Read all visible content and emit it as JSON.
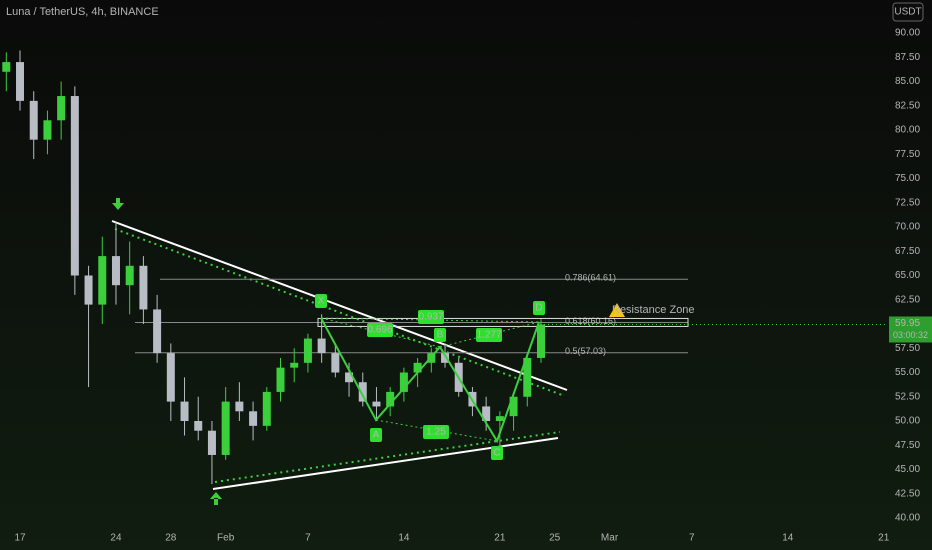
{
  "header": {
    "title": "Luna / TetherUS, 4h, BINANCE",
    "currency": "USDT"
  },
  "chart_data": {
    "type": "candlestick",
    "up_color": "#3ccf3c",
    "down_color": "#b8bcc4",
    "grid": false,
    "categories": [
      null,
      "17",
      null,
      null,
      null,
      null,
      null,
      null,
      "24",
      null,
      null,
      null,
      "28",
      null,
      null,
      null,
      "Feb",
      null,
      null,
      null,
      null,
      null,
      "7",
      null,
      null,
      null,
      null,
      null,
      null,
      "14",
      null,
      null,
      null,
      null,
      null,
      null,
      "21",
      null,
      null,
      null,
      "25",
      null,
      null,
      null,
      "Mar",
      null,
      null,
      null,
      null,
      null,
      "7",
      null,
      null,
      null,
      null,
      null,
      null,
      "14",
      null,
      null,
      null,
      null,
      null,
      null,
      "21"
    ],
    "open": [
      86,
      87,
      83,
      79,
      81,
      83.5,
      65,
      62,
      67,
      64,
      66,
      61.5,
      57,
      52,
      50,
      49,
      46.5,
      52,
      51,
      49.5,
      53,
      55.5,
      56,
      58.5,
      57,
      55,
      54,
      52,
      51.5,
      53,
      55,
      56,
      57,
      56,
      53,
      51.5,
      50,
      50.5,
      52.5,
      56.5,
      null,
      null,
      null,
      null,
      null,
      null,
      null,
      null,
      null,
      null,
      null,
      null,
      null,
      null,
      null,
      null,
      null,
      null,
      null,
      null,
      null,
      null,
      null,
      null,
      null
    ],
    "high": [
      88,
      88.2,
      84,
      82,
      85,
      84.5,
      66,
      69,
      70.5,
      68.5,
      67,
      63,
      58,
      54.5,
      52.5,
      50,
      53.5,
      54,
      52,
      53.5,
      56.5,
      57.5,
      59,
      61,
      58,
      56,
      55,
      53.5,
      53.5,
      55.5,
      56.5,
      57.5,
      58,
      56.5,
      53.5,
      52.5,
      51,
      53,
      57,
      60.5,
      null,
      null,
      null,
      null,
      null,
      null,
      null,
      null,
      null,
      null,
      null,
      null,
      null,
      null,
      null,
      null,
      null,
      null,
      null,
      null,
      null,
      null,
      null,
      null,
      null
    ],
    "low": [
      84,
      82,
      77,
      77.5,
      79,
      63,
      53.5,
      60,
      62,
      61,
      60,
      56,
      50,
      48.5,
      48,
      43.5,
      46,
      50,
      48,
      49,
      52,
      54,
      55,
      56,
      54.5,
      52.5,
      51.5,
      50,
      50.5,
      52,
      53.5,
      55,
      55.5,
      52.5,
      50.5,
      49,
      47.5,
      49,
      51.5,
      56,
      null,
      null,
      null,
      null,
      null,
      null,
      null,
      null,
      null,
      null,
      null,
      null,
      null,
      null,
      null,
      null,
      null,
      null,
      null,
      null,
      null,
      null,
      null,
      null,
      null
    ],
    "close": [
      87,
      83,
      79,
      81,
      83.5,
      65,
      62,
      67,
      64,
      66,
      61.5,
      57,
      52,
      50,
      49,
      46.5,
      52,
      51,
      49.5,
      53,
      55.5,
      56,
      58.5,
      57,
      55,
      54,
      52,
      51.5,
      53,
      55,
      56,
      57,
      56,
      53,
      51.5,
      50,
      50.5,
      52.5,
      56.5,
      59.95,
      null,
      null,
      null,
      null,
      null,
      null,
      null,
      null,
      null,
      null,
      null,
      null,
      null,
      null,
      null,
      null,
      null,
      null,
      null,
      null,
      null,
      null,
      null,
      null,
      null
    ],
    "ylim": [
      38.97,
      93.4
    ],
    "yticks": [
      {
        "value": 40,
        "label": "40.00"
      },
      {
        "value": 42.5,
        "label": "42.50"
      },
      {
        "value": 45,
        "label": "45.00"
      },
      {
        "value": 47.5,
        "label": "47.50"
      },
      {
        "value": 50,
        "label": "50.00"
      },
      {
        "value": 52.5,
        "label": "52.50"
      },
      {
        "value": 55,
        "label": "55.00"
      },
      {
        "value": 57.5,
        "label": "57.50"
      },
      {
        "value": 60,
        "label": "60.00"
      },
      {
        "value": 62.5,
        "label": "62.50"
      },
      {
        "value": 65,
        "label": "65.00"
      },
      {
        "value": 67.5,
        "label": "67.50"
      },
      {
        "value": 70,
        "label": "70.00"
      },
      {
        "value": 72.5,
        "label": "72.50"
      },
      {
        "value": 75,
        "label": "75.00"
      },
      {
        "value": 77.5,
        "label": "77.50"
      },
      {
        "value": 80,
        "label": "80.00"
      },
      {
        "value": 82.5,
        "label": "82.50"
      },
      {
        "value": 85,
        "label": "85.00"
      },
      {
        "value": 87.5,
        "label": "87.50"
      },
      {
        "value": 90,
        "label": "90.00"
      },
      {
        "value": 92.5,
        "label": "92.50"
      }
    ],
    "fib_levels": [
      {
        "value": 64.61,
        "label": "0.786(64.61)"
      },
      {
        "value": 60.16,
        "label": "0.618(60.16)"
      },
      {
        "value": 57.03,
        "label": "0.5(57.03)"
      }
    ],
    "last_price": 59.95,
    "countdown": "03:00:32",
    "pattern_points": [
      "X",
      "A",
      "B",
      "C",
      "D"
    ],
    "pattern_ratios": [
      "0.696",
      "0.937",
      "1.277",
      "1.25"
    ],
    "zone_label": "Resistance Zone"
  }
}
